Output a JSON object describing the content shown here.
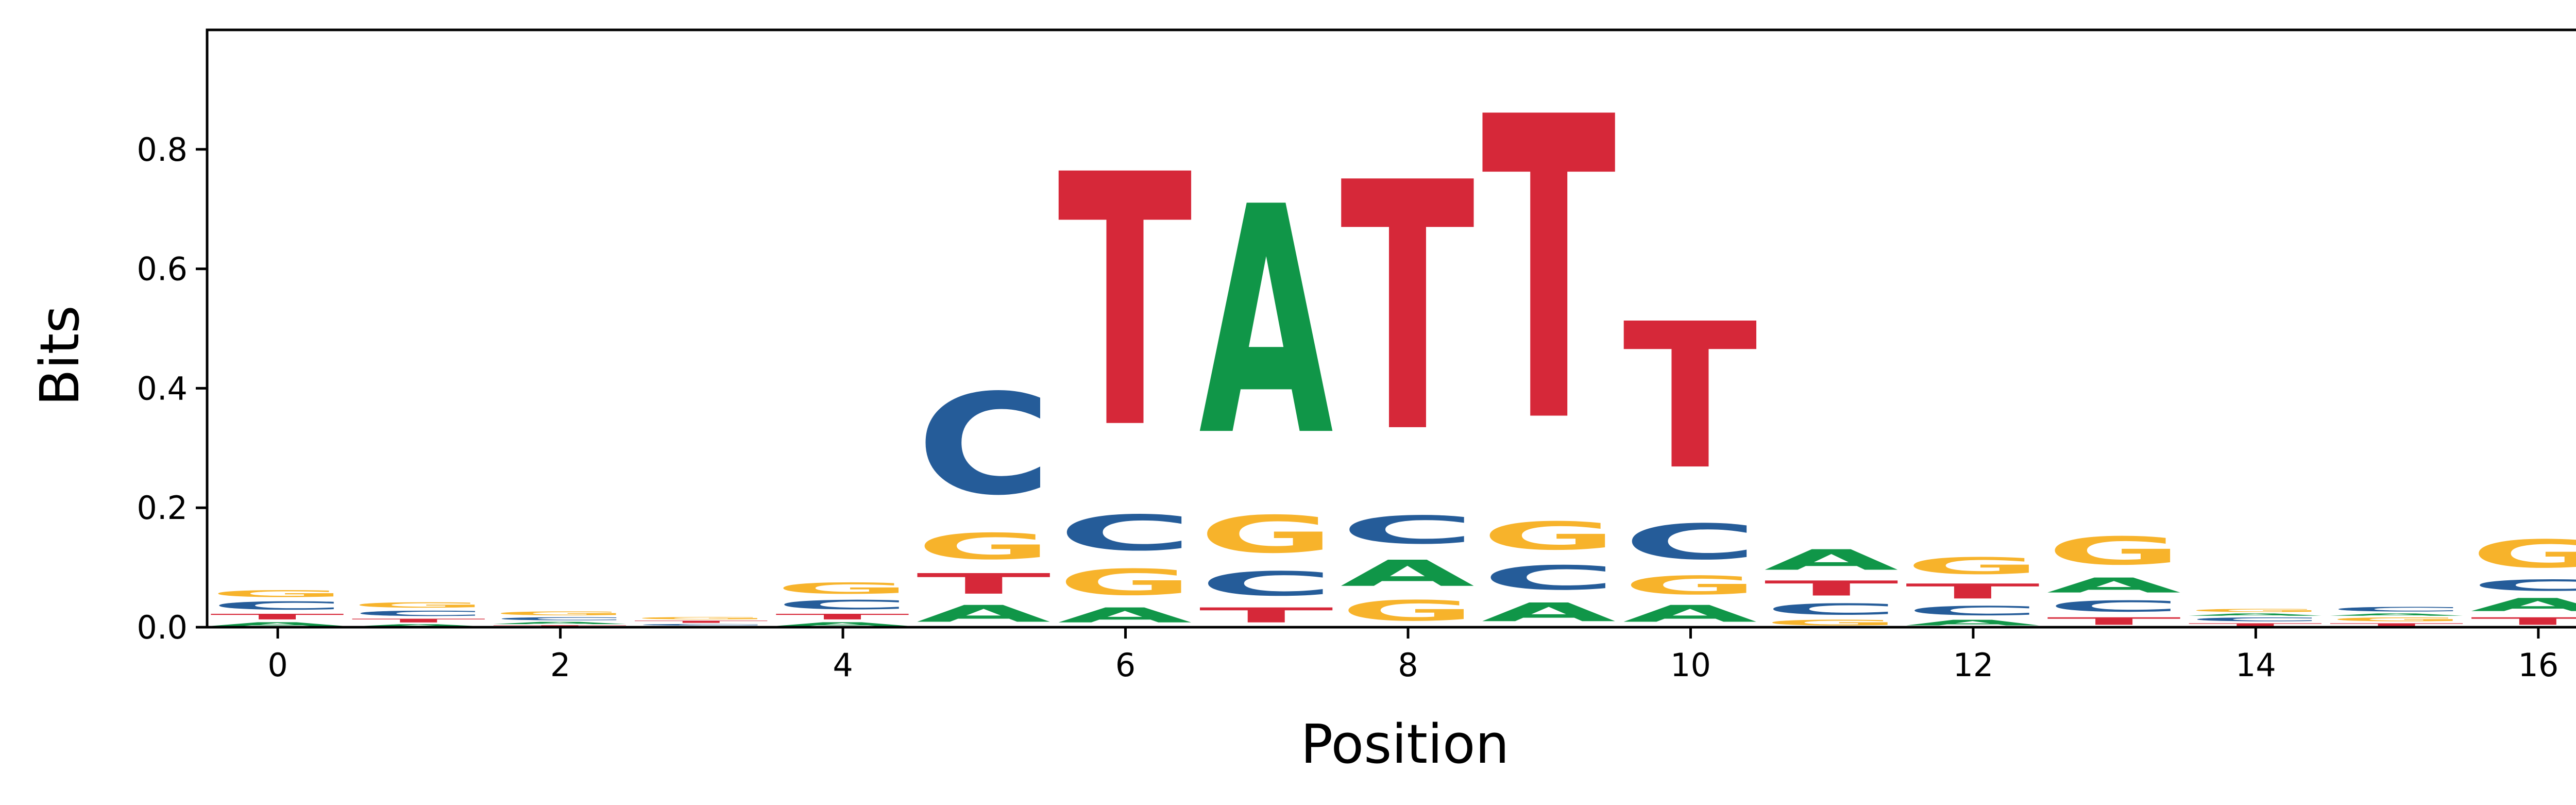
{
  "chart_data": {
    "type": "sequence_logo",
    "xlabel": "Position",
    "ylabel": "Bits",
    "xlim": [
      -0.5,
      16.5
    ],
    "ylim": [
      0,
      1.0
    ],
    "x_ticks": [
      0,
      2,
      4,
      6,
      8,
      10,
      12,
      14,
      16
    ],
    "x_tick_labels": [
      "0",
      "2",
      "4",
      "6",
      "8",
      "10",
      "12",
      "14",
      "16"
    ],
    "y_ticks": [
      0.0,
      0.2,
      0.4,
      0.6,
      0.8
    ],
    "y_tick_labels": [
      "0.0",
      "0.2",
      "0.4",
      "0.6",
      "0.8"
    ],
    "colors": {
      "A": "#109648",
      "C": "#255c99",
      "G": "#f7b32b",
      "T": "#d62839"
    },
    "positions": [
      {
        "pos": 0,
        "stack": [
          {
            "base": "A",
            "h": 0.01
          },
          {
            "base": "T",
            "h": 0.015
          },
          {
            "base": "C",
            "h": 0.022
          },
          {
            "base": "G",
            "h": 0.018
          }
        ]
      },
      {
        "pos": 1,
        "stack": [
          {
            "base": "A",
            "h": 0.006
          },
          {
            "base": "T",
            "h": 0.01
          },
          {
            "base": "C",
            "h": 0.014
          },
          {
            "base": "G",
            "h": 0.014
          }
        ]
      },
      {
        "pos": 2,
        "stack": [
          {
            "base": "T",
            "h": 0.004
          },
          {
            "base": "A",
            "h": 0.006
          },
          {
            "base": "C",
            "h": 0.008
          },
          {
            "base": "G",
            "h": 0.01
          }
        ]
      },
      {
        "pos": 3,
        "stack": [
          {
            "base": "A",
            "h": 0.002
          },
          {
            "base": "C",
            "h": 0.004
          },
          {
            "base": "T",
            "h": 0.006
          },
          {
            "base": "G",
            "h": 0.006
          }
        ]
      },
      {
        "pos": 4,
        "stack": [
          {
            "base": "A",
            "h": 0.01
          },
          {
            "base": "T",
            "h": 0.015
          },
          {
            "base": "C",
            "h": 0.025
          },
          {
            "base": "G",
            "h": 0.03
          }
        ]
      },
      {
        "pos": 5,
        "stack": [
          {
            "base": "A",
            "h": 0.045
          },
          {
            "base": "T",
            "h": 0.055
          },
          {
            "base": "G",
            "h": 0.07
          },
          {
            "base": "C",
            "h": 0.27
          }
        ]
      },
      {
        "pos": 6,
        "stack": [
          {
            "base": "A",
            "h": 0.04
          },
          {
            "base": "G",
            "h": 0.07
          },
          {
            "base": "C",
            "h": 0.095
          },
          {
            "base": "T",
            "h": 0.675
          }
        ]
      },
      {
        "pos": 7,
        "stack": [
          {
            "base": "T",
            "h": 0.04
          },
          {
            "base": "C",
            "h": 0.065
          },
          {
            "base": "G",
            "h": 0.1
          },
          {
            "base": "A",
            "h": 0.61
          }
        ]
      },
      {
        "pos": 8,
        "stack": [
          {
            "base": "G",
            "h": 0.055
          },
          {
            "base": "A",
            "h": 0.07
          },
          {
            "base": "C",
            "h": 0.075
          },
          {
            "base": "T",
            "h": 0.665
          }
        ]
      },
      {
        "pos": 9,
        "stack": [
          {
            "base": "A",
            "h": 0.05
          },
          {
            "base": "C",
            "h": 0.065
          },
          {
            "base": "G",
            "h": 0.075
          },
          {
            "base": "T",
            "h": 0.81
          }
        ]
      },
      {
        "pos": 10,
        "stack": [
          {
            "base": "A",
            "h": 0.045
          },
          {
            "base": "G",
            "h": 0.05
          },
          {
            "base": "C",
            "h": 0.095
          },
          {
            "base": "T",
            "h": 0.39
          }
        ]
      },
      {
        "pos": 11,
        "stack": [
          {
            "base": "G",
            "h": 0.015
          },
          {
            "base": "C",
            "h": 0.03
          },
          {
            "base": "T",
            "h": 0.04
          },
          {
            "base": "A",
            "h": 0.055
          }
        ]
      },
      {
        "pos": 12,
        "stack": [
          {
            "base": "A",
            "h": 0.015
          },
          {
            "base": "C",
            "h": 0.025
          },
          {
            "base": "T",
            "h": 0.04
          },
          {
            "base": "G",
            "h": 0.045
          }
        ]
      },
      {
        "pos": 13,
        "stack": [
          {
            "base": "T",
            "h": 0.02
          },
          {
            "base": "C",
            "h": 0.03
          },
          {
            "base": "A",
            "h": 0.04
          },
          {
            "base": "G",
            "h": 0.075
          }
        ]
      },
      {
        "pos": 14,
        "stack": [
          {
            "base": "T",
            "h": 0.008
          },
          {
            "base": "C",
            "h": 0.01
          },
          {
            "base": "A",
            "h": 0.006
          },
          {
            "base": "G",
            "h": 0.008
          }
        ]
      },
      {
        "pos": 15,
        "stack": [
          {
            "base": "T",
            "h": 0.008
          },
          {
            "base": "G",
            "h": 0.01
          },
          {
            "base": "A",
            "h": 0.006
          },
          {
            "base": "C",
            "h": 0.012
          }
        ]
      },
      {
        "pos": 16,
        "stack": [
          {
            "base": "T",
            "h": 0.02
          },
          {
            "base": "A",
            "h": 0.035
          },
          {
            "base": "C",
            "h": 0.03
          },
          {
            "base": "G",
            "h": 0.075
          }
        ]
      }
    ]
  }
}
